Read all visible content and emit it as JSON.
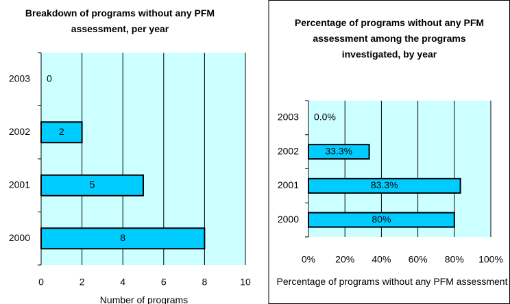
{
  "chart_data": [
    {
      "type": "bar",
      "orientation": "horizontal",
      "title": "Breakdown of programs without any PFM assessment, per year",
      "categories": [
        "2003",
        "2002",
        "2001",
        "2000"
      ],
      "values": [
        0,
        2,
        5,
        8
      ],
      "color": "#00ccff",
      "xlim": [
        0,
        10
      ],
      "xticks": [
        0,
        2,
        4,
        6,
        8,
        10
      ],
      "x_label": "Number of programs",
      "grid": true
    },
    {
      "type": "bar",
      "orientation": "horizontal",
      "title": "Percentage of programs without any PFM assessment among the programs investigated, by year",
      "categories": [
        "2003",
        "2002",
        "2001",
        "2000"
      ],
      "values": [
        0,
        33.3,
        83.3,
        80
      ],
      "value_labels": [
        "0.0%",
        "33.3%",
        "83.3%",
        "80%"
      ],
      "color": "#00ccff",
      "xlim": [
        0,
        100
      ],
      "xticks": [
        {
          "value": 0,
          "label": "0%"
        },
        {
          "value": 20,
          "label": "20%"
        },
        {
          "value": 40,
          "label": "40%"
        },
        {
          "value": 60,
          "label": "60%"
        },
        {
          "value": 80,
          "label": "80%"
        },
        {
          "value": 100,
          "label": "100%"
        }
      ],
      "x_label": "Percentage of programs without any PFM assessment",
      "grid": true
    }
  ]
}
